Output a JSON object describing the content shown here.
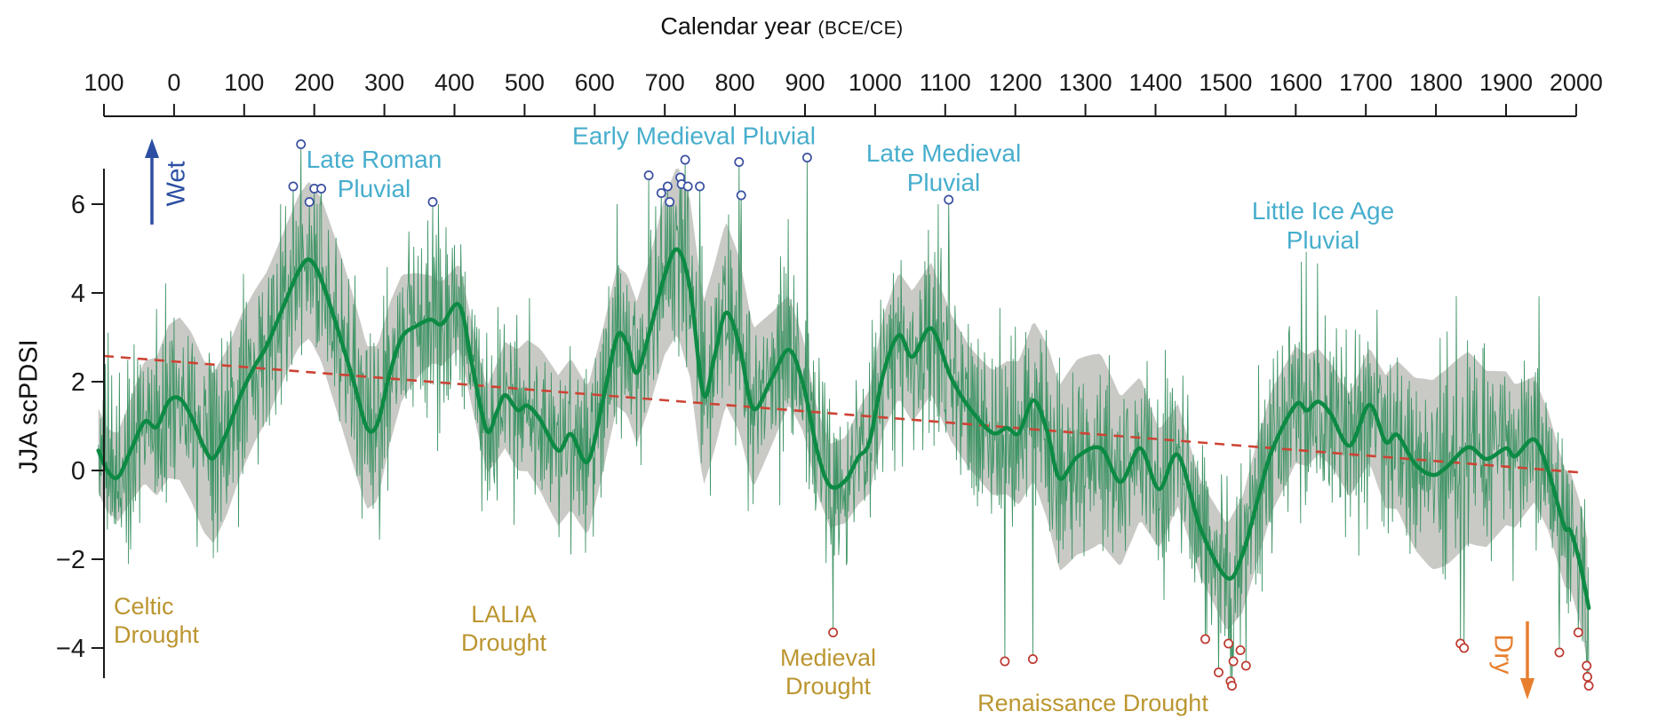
{
  "figure": {
    "title_main": "Calendar year",
    "title_paren": "(BCE/CE)",
    "ylabel": "JJA scPDSI"
  },
  "axes": {
    "x_tick_years": [
      -100,
      0,
      100,
      200,
      300,
      400,
      500,
      600,
      700,
      800,
      900,
      1000,
      1100,
      1200,
      1300,
      1400,
      1500,
      1600,
      1700,
      1800,
      1900,
      2000
    ],
    "x_tick_labels": [
      "100",
      "0",
      "100",
      "200",
      "300",
      "400",
      "500",
      "600",
      "700",
      "800",
      "900",
      "1000",
      "1100",
      "1200",
      "1300",
      "1400",
      "1500",
      "1600",
      "1700",
      "1800",
      "1900",
      "2000"
    ],
    "y_tick_values": [
      6,
      4,
      2,
      0,
      -2,
      -4
    ],
    "y_tick_labels": [
      "6",
      "4",
      "2",
      "0",
      "−2",
      "−4"
    ]
  },
  "chart_data": {
    "type": "line",
    "title": "Calendar year (BCE/CE)",
    "xlabel": "Calendar year (BCE/CE)",
    "ylabel": "JJA scPDSI",
    "xlim": [
      -110,
      2030
    ],
    "ylim": [
      -5.2,
      7.6
    ],
    "grid": false,
    "series": [
      {
        "name": "annual-reconstruction",
        "description": "Annual JJA scPDSI values, high-frequency thin green line oscillating around the smoothed curve",
        "noise_sd": 1.3,
        "value_range": [
          -4.85,
          7.35
        ]
      },
      {
        "name": "smoothed-mean",
        "description": "Multidecadal smoothed JJA scPDSI (thick dark green line)",
        "points": [
          [
            -108,
            0.45
          ],
          [
            -95,
            0.0
          ],
          [
            -80,
            -0.15
          ],
          [
            -62,
            0.45
          ],
          [
            -42,
            1.1
          ],
          [
            -25,
            0.98
          ],
          [
            -8,
            1.55
          ],
          [
            8,
            1.62
          ],
          [
            25,
            1.2
          ],
          [
            42,
            0.55
          ],
          [
            56,
            0.28
          ],
          [
            75,
            0.85
          ],
          [
            95,
            1.7
          ],
          [
            115,
            2.35
          ],
          [
            132,
            2.8
          ],
          [
            160,
            3.85
          ],
          [
            178,
            4.5
          ],
          [
            193,
            4.75
          ],
          [
            210,
            4.3
          ],
          [
            237,
            3.0
          ],
          [
            258,
            1.9
          ],
          [
            275,
            0.96
          ],
          [
            290,
            1.05
          ],
          [
            308,
            2.2
          ],
          [
            325,
            3.0
          ],
          [
            345,
            3.25
          ],
          [
            366,
            3.4
          ],
          [
            382,
            3.3
          ],
          [
            407,
            3.72
          ],
          [
            426,
            2.3
          ],
          [
            446,
            0.9
          ],
          [
            460,
            1.3
          ],
          [
            472,
            1.7
          ],
          [
            490,
            1.36
          ],
          [
            504,
            1.46
          ],
          [
            522,
            1.15
          ],
          [
            548,
            0.45
          ],
          [
            566,
            0.82
          ],
          [
            590,
            0.2
          ],
          [
            612,
            1.6
          ],
          [
            632,
            3.02
          ],
          [
            646,
            2.85
          ],
          [
            660,
            2.2
          ],
          [
            678,
            3.1
          ],
          [
            700,
            4.4
          ],
          [
            718,
            4.98
          ],
          [
            736,
            4.1
          ],
          [
            755,
            1.72
          ],
          [
            770,
            2.5
          ],
          [
            787,
            3.55
          ],
          [
            806,
            2.85
          ],
          [
            826,
            1.4
          ],
          [
            852,
            2.05
          ],
          [
            877,
            2.72
          ],
          [
            898,
            1.9
          ],
          [
            918,
            0.4
          ],
          [
            936,
            -0.35
          ],
          [
            958,
            -0.22
          ],
          [
            976,
            0.3
          ],
          [
            992,
            0.65
          ],
          [
            1012,
            2.2
          ],
          [
            1034,
            3.05
          ],
          [
            1053,
            2.56
          ],
          [
            1080,
            3.2
          ],
          [
            1108,
            2.1
          ],
          [
            1134,
            1.42
          ],
          [
            1167,
            0.85
          ],
          [
            1188,
            0.96
          ],
          [
            1205,
            0.84
          ],
          [
            1226,
            1.58
          ],
          [
            1246,
            0.85
          ],
          [
            1263,
            -0.18
          ],
          [
            1288,
            0.3
          ],
          [
            1322,
            0.5
          ],
          [
            1350,
            -0.26
          ],
          [
            1378,
            0.5
          ],
          [
            1405,
            -0.42
          ],
          [
            1432,
            0.35
          ],
          [
            1464,
            -1.3
          ],
          [
            1502,
            -2.42
          ],
          [
            1524,
            -1.9
          ],
          [
            1545,
            -0.7
          ],
          [
            1566,
            0.45
          ],
          [
            1600,
            1.48
          ],
          [
            1616,
            1.35
          ],
          [
            1632,
            1.55
          ],
          [
            1650,
            1.27
          ],
          [
            1677,
            0.56
          ],
          [
            1705,
            1.48
          ],
          [
            1728,
            0.65
          ],
          [
            1745,
            0.8
          ],
          [
            1770,
            0.15
          ],
          [
            1795,
            -0.1
          ],
          [
            1814,
            0.06
          ],
          [
            1846,
            0.52
          ],
          [
            1872,
            0.26
          ],
          [
            1900,
            0.5
          ],
          [
            1913,
            0.32
          ],
          [
            1940,
            0.7
          ],
          [
            1960,
            0.0
          ],
          [
            1972,
            -0.66
          ],
          [
            1984,
            -1.3
          ],
          [
            1992,
            -1.36
          ],
          [
            2004,
            -2.0
          ],
          [
            2012,
            -2.6
          ],
          [
            2018,
            -3.1
          ]
        ]
      },
      {
        "name": "uncertainty-band",
        "description": "Gray uncertainty envelope around the smoothed curve",
        "halfwidth_mean": 1.6
      },
      {
        "name": "linear-trend",
        "description": "Long-term drying trend (red dashed line)",
        "points": [
          [
            -100,
            2.58
          ],
          [
            2010,
            -0.05
          ]
        ]
      }
    ],
    "wet_extremes": {
      "marker": "blue-circle",
      "points": [
        [
          170,
          6.4
        ],
        [
          181,
          7.35
        ],
        [
          193,
          6.05
        ],
        [
          200,
          6.35
        ],
        [
          210,
          6.35
        ],
        [
          369,
          6.05
        ],
        [
          677,
          6.65
        ],
        [
          695,
          6.25
        ],
        [
          704,
          6.4
        ],
        [
          707,
          6.05
        ],
        [
          722,
          6.6
        ],
        [
          724,
          6.45
        ],
        [
          729,
          7.0
        ],
        [
          733,
          6.4
        ],
        [
          750,
          6.4
        ],
        [
          806,
          6.95
        ],
        [
          809,
          6.2
        ],
        [
          903,
          7.05
        ],
        [
          1105,
          6.1
        ]
      ]
    },
    "dry_extremes": {
      "marker": "red-circle",
      "points": [
        [
          940,
          -3.65
        ],
        [
          1185,
          -4.3
        ],
        [
          1225,
          -4.25
        ],
        [
          1471,
          -3.8
        ],
        [
          1490,
          -4.55
        ],
        [
          1504,
          -3.9
        ],
        [
          1507,
          -4.75
        ],
        [
          1509,
          -4.85
        ],
        [
          1511,
          -4.3
        ],
        [
          1521,
          -4.05
        ],
        [
          1529,
          -4.4
        ],
        [
          1835,
          -3.9
        ],
        [
          1840,
          -4.0
        ],
        [
          1976,
          -4.1
        ],
        [
          2003,
          -3.65
        ],
        [
          2015,
          -4.4
        ],
        [
          2016,
          -4.65
        ],
        [
          2018,
          -4.85
        ]
      ]
    }
  },
  "annotations": {
    "wet_label": "Wet",
    "dry_label": "Dry",
    "pluvials": [
      {
        "id": "late-roman-pluvial",
        "lines": [
          "Late Roman",
          "Pluvial"
        ]
      },
      {
        "id": "early-medieval-pluvial",
        "lines": [
          "Early Medieval Pluvial"
        ]
      },
      {
        "id": "late-medieval-pluvial",
        "lines": [
          "Late Medieval",
          "Pluvial"
        ]
      },
      {
        "id": "little-ice-age-pluvial",
        "lines": [
          "Little Ice Age",
          "Pluvial"
        ]
      }
    ],
    "droughts": [
      {
        "id": "celtic-drought",
        "lines": [
          "Celtic",
          "Drought"
        ]
      },
      {
        "id": "lalia-drought",
        "lines": [
          "LALIA",
          "Drought"
        ]
      },
      {
        "id": "medieval-drought",
        "lines": [
          "Medieval",
          "Drought"
        ]
      },
      {
        "id": "renaissance-drought",
        "lines": [
          "Renaissance Drought"
        ]
      }
    ]
  },
  "colors": {
    "annual_line": "#3f9465",
    "smoothed_line": "#0d8a44",
    "band_fill": "#c9cac6",
    "trend_line": "#cd4334",
    "wet_marker": "#3a4fa2",
    "dry_marker": "#bd3a31",
    "pluvial_text": "#47aecd",
    "drought_text": "#bb9630",
    "wet_arrow": "#2c4fa3",
    "dry_arrow": "#e77f2e",
    "axis": "#1a1a1a"
  }
}
